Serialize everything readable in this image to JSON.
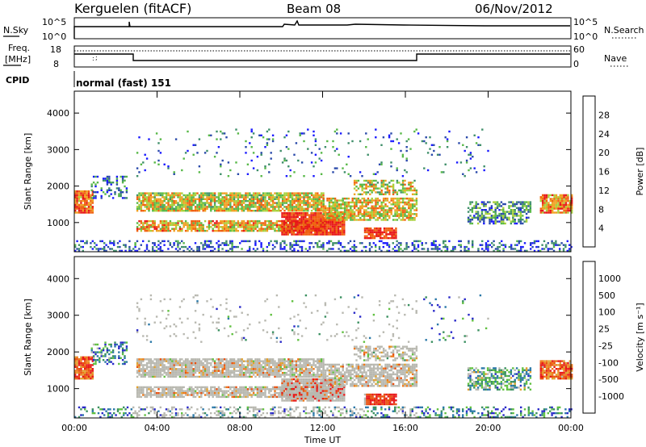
{
  "header": {
    "station": "Kerguelen (fitACF)",
    "beam": "Beam 08",
    "date": "06/Nov/2012"
  },
  "noise_panel": {
    "left_label": "N.Sky",
    "right_label": "N.Search",
    "left_ticks": [
      "10^5",
      "10^0"
    ],
    "right_ticks": [
      "10^5",
      "10^0"
    ]
  },
  "freq_panel": {
    "left_label_line1": "Freq.",
    "left_label_line2": "[MHz]",
    "right_label": "Nave",
    "left_ticks": [
      "18",
      "8"
    ],
    "right_ticks": [
      "60",
      "0"
    ]
  },
  "cpid": {
    "label": "CPID",
    "value": "normal (fast) 151"
  },
  "chart_data": [
    {
      "type": "heatmap",
      "title": "",
      "ylabel": "Slant Range [km]",
      "xlabel": "",
      "ylim": [
        200,
        4600
      ],
      "yticks": [
        "1000",
        "2000",
        "3000",
        "4000"
      ],
      "colorbar": {
        "label": "Power [dB]",
        "ticks": [
          "4",
          "8",
          "12",
          "16",
          "20",
          "24",
          "28"
        ],
        "colors": [
          "#1a1aff",
          "#2a4aaa",
          "#3f8f6a",
          "#58b848",
          "#a8d03a",
          "#f0a020",
          "#f06010",
          "#e81818"
        ]
      }
    },
    {
      "type": "heatmap",
      "title": "",
      "ylabel": "Slant Range [km]",
      "xlabel": "Time UT",
      "ylim": [
        200,
        4600
      ],
      "yticks": [
        "1000",
        "2000",
        "3000",
        "4000"
      ],
      "xticks": [
        "00:00",
        "04:00",
        "08:00",
        "12:00",
        "16:00",
        "20:00",
        "00:00"
      ],
      "colorbar": {
        "label": "Velocity [m s⁻¹]",
        "ticks": [
          "1000",
          "500",
          "100",
          "25",
          "-25",
          "-100",
          "-500",
          "-1000"
        ],
        "colors": [
          "#2828c8",
          "#2a78a8",
          "#3a9060",
          "#60c040",
          "#b8b8b0",
          "#e0a030",
          "#f07818",
          "#e85010",
          "#e81818"
        ]
      }
    }
  ]
}
